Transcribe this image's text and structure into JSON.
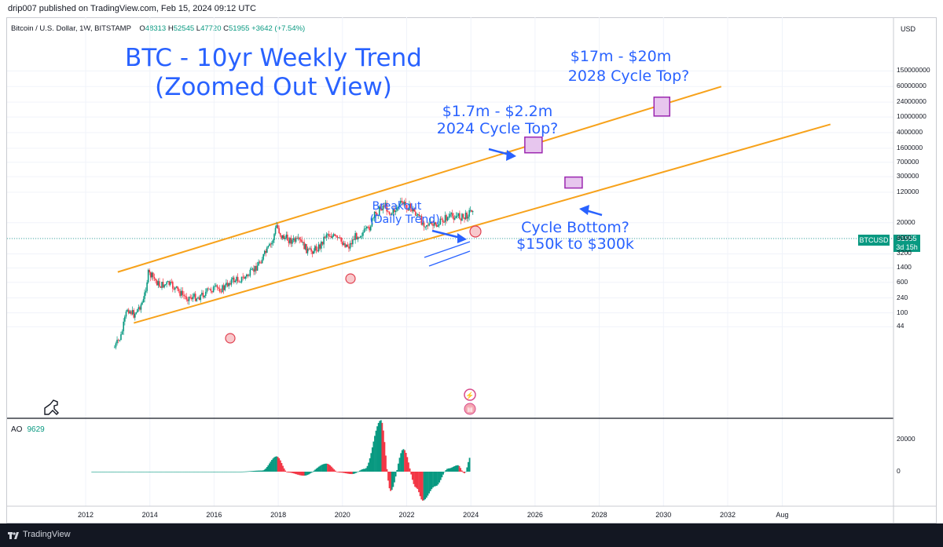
{
  "header": {
    "text": "drip007 published on TradingView.com, Feb 15, 2024 09:12 UTC"
  },
  "symbol": {
    "name": "Bitcoin / U.S. Dollar, 1W, BITSTAMP",
    "o_label": "O",
    "o": "48313",
    "h_label": "H",
    "h": "52545",
    "l_label": "L",
    "l": "47720",
    "c_label": "C",
    "c": "51955",
    "change": "+3642 (+7.54%)"
  },
  "currency": "USD",
  "last_price": {
    "ticker": "BTCUSD",
    "value": "51955",
    "countdown": "3d 15h"
  },
  "annotations": {
    "title_line1": "BTC - 10yr Weekly Trend",
    "title_line2": "(Zoomed Out View)",
    "top2028_line1": "$17m - $20m",
    "top2028_line2": "2028 Cycle Top?",
    "top2024_line1": "$1.7m - $2.2m",
    "top2024_line2": "2024 Cycle Top?",
    "breakout_line1": "Breakout",
    "breakout_line2": "(Daily Trend)",
    "bottom_line1": "Cycle Bottom?",
    "bottom_line2": "$150k to $300k"
  },
  "indicator": {
    "name": "AO",
    "value": "9629"
  },
  "footer": {
    "brand": "TradingView"
  },
  "colors": {
    "channel": "#f7a21b",
    "up": "#089981",
    "down": "#f23645",
    "annotation": "#2962ff",
    "box": "#9c27b0"
  },
  "chart_data": {
    "type": "line",
    "scale": "log",
    "price_axis_ticks": [
      "150000000",
      "60000000",
      "24000000",
      "10000000",
      "4000000",
      "1600000",
      "700000",
      "300000",
      "120000",
      "20000",
      "8000",
      "3200",
      "1400",
      "600",
      "240",
      "100",
      "44"
    ],
    "ao_axis_ticks": [
      "20000",
      "0"
    ],
    "time_axis_ticks": [
      "2012",
      "2014",
      "2016",
      "2018",
      "2020",
      "2022",
      "2024",
      "2026",
      "2028",
      "2030",
      "2032",
      "Aug"
    ],
    "price_series": [
      {
        "t": 2012.9,
        "v": 13
      },
      {
        "t": 2013.1,
        "v": 25
      },
      {
        "t": 2013.3,
        "v": 130
      },
      {
        "t": 2013.5,
        "v": 90
      },
      {
        "t": 2013.8,
        "v": 200
      },
      {
        "t": 2013.95,
        "v": 1000
      },
      {
        "t": 2014.1,
        "v": 800
      },
      {
        "t": 2014.3,
        "v": 500
      },
      {
        "t": 2014.6,
        "v": 550
      },
      {
        "t": 2014.9,
        "v": 350
      },
      {
        "t": 2015.1,
        "v": 250
      },
      {
        "t": 2015.5,
        "v": 250
      },
      {
        "t": 2015.9,
        "v": 400
      },
      {
        "t": 2016.3,
        "v": 420
      },
      {
        "t": 2016.5,
        "v": 650
      },
      {
        "t": 2016.9,
        "v": 750
      },
      {
        "t": 2017.2,
        "v": 1100
      },
      {
        "t": 2017.5,
        "v": 2500
      },
      {
        "t": 2017.8,
        "v": 6000
      },
      {
        "t": 2017.95,
        "v": 17000
      },
      {
        "t": 2018.1,
        "v": 9000
      },
      {
        "t": 2018.4,
        "v": 7000
      },
      {
        "t": 2018.7,
        "v": 6500
      },
      {
        "t": 2018.95,
        "v": 3500
      },
      {
        "t": 2019.3,
        "v": 5000
      },
      {
        "t": 2019.5,
        "v": 11000
      },
      {
        "t": 2019.8,
        "v": 8000
      },
      {
        "t": 2020.2,
        "v": 5000
      },
      {
        "t": 2020.4,
        "v": 9000
      },
      {
        "t": 2020.8,
        "v": 13000
      },
      {
        "t": 2021.0,
        "v": 30000
      },
      {
        "t": 2021.3,
        "v": 60000
      },
      {
        "t": 2021.5,
        "v": 33000
      },
      {
        "t": 2021.85,
        "v": 65000
      },
      {
        "t": 2022.2,
        "v": 42000
      },
      {
        "t": 2022.5,
        "v": 20000
      },
      {
        "t": 2022.9,
        "v": 16000
      },
      {
        "t": 2023.2,
        "v": 26000
      },
      {
        "t": 2023.5,
        "v": 30000
      },
      {
        "t": 2023.8,
        "v": 27000
      },
      {
        "t": 2024.1,
        "v": 51955
      }
    ],
    "channel_upper": [
      {
        "t": 2013.0,
        "v": 1100
      },
      {
        "t": 2031.8,
        "v": 60000000
      }
    ],
    "channel_lower": [
      {
        "t": 2013.5,
        "v": 55
      },
      {
        "t": 2035.2,
        "v": 6500000
      }
    ],
    "ao_series": [
      {
        "t": 2012.2,
        "v": 0
      },
      {
        "t": 2016.8,
        "v": 0
      },
      {
        "t": 2017.5,
        "v": 700
      },
      {
        "t": 2017.95,
        "v": 9500
      },
      {
        "t": 2018.3,
        "v": -500
      },
      {
        "t": 2018.8,
        "v": -2500
      },
      {
        "t": 2019.5,
        "v": 5000
      },
      {
        "t": 2019.9,
        "v": -500
      },
      {
        "t": 2020.3,
        "v": -1500
      },
      {
        "t": 2020.7,
        "v": 1800
      },
      {
        "t": 2021.2,
        "v": 32000
      },
      {
        "t": 2021.5,
        "v": -12000
      },
      {
        "t": 2021.9,
        "v": 14000
      },
      {
        "t": 2022.3,
        "v": -10000
      },
      {
        "t": 2022.5,
        "v": -18000
      },
      {
        "t": 2022.9,
        "v": -9000
      },
      {
        "t": 2023.3,
        "v": 2000
      },
      {
        "t": 2023.6,
        "v": 4000
      },
      {
        "t": 2023.8,
        "v": -1000
      },
      {
        "t": 2024.0,
        "v": 9629
      }
    ],
    "target_boxes": [
      {
        "label": "2024 Cycle Top?",
        "t": 2025.95,
        "low": 1700000,
        "high": 2200000
      },
      {
        "label": "2028 Cycle Top?",
        "t": 2029.95,
        "low": 17000000,
        "high": 20000000
      },
      {
        "label": "Cycle Bottom?",
        "t": 2027.2,
        "low": 150000,
        "high": 300000
      }
    ],
    "xlim": [
      2011.8,
      2034.5
    ],
    "ylim": [
      15,
      300000000
    ]
  }
}
